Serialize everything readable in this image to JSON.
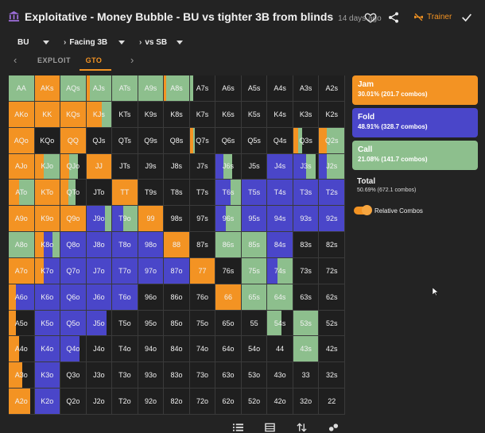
{
  "header": {
    "title": "Exploitative - Money Bubble - BU vs tighter 3B from blinds",
    "time": "14 days ago",
    "trainer_label": "Trainer"
  },
  "breadcrumbs": [
    {
      "label": "BU",
      "name": "breadcrumb-position"
    },
    {
      "label": "Facing 3B",
      "name": "breadcrumb-action"
    },
    {
      "label": "vs SB",
      "name": "breadcrumb-villain"
    }
  ],
  "tabs": {
    "exploit": "EXPLOIT",
    "gto": "GTO"
  },
  "colors": {
    "jam": "#f39323",
    "fold": "#4a46c9",
    "call": "#8dbf8d",
    "none": "#1f1f1f"
  },
  "legend": {
    "jam": {
      "name": "Jam",
      "pct": "30.01% (201.7 combos)"
    },
    "fold": {
      "name": "Fold",
      "pct": "48.91% (328.7 combos)"
    },
    "call": {
      "name": "Call",
      "pct": "21.08% (141.7 combos)"
    },
    "total": {
      "label": "Total",
      "value": "50.69% (672.1 combos)"
    },
    "relative_combos": "Relative Combos"
  },
  "matrix": [
    [
      {
        "h": "AA",
        "j": 0,
        "f": 0,
        "c": 1
      },
      {
        "h": "AKs",
        "j": 1,
        "f": 0,
        "c": 0
      },
      {
        "h": "AQs",
        "j": 0,
        "f": 0,
        "c": 1
      },
      {
        "h": "AJs",
        "j": 0.15,
        "f": 0,
        "c": 0.85
      },
      {
        "h": "ATs",
        "j": 0,
        "f": 0,
        "c": 1
      },
      {
        "h": "A9s",
        "j": 0,
        "f": 0,
        "c": 1
      },
      {
        "h": "A8s",
        "j": 0.1,
        "f": 0,
        "c": 0.9
      },
      {
        "h": "A7s",
        "j": 0,
        "f": 0,
        "c": 0.15
      },
      {
        "h": "A6s",
        "j": 0,
        "f": 0,
        "c": 0
      },
      {
        "h": "A5s",
        "j": 0,
        "f": 0,
        "c": 0
      },
      {
        "h": "A4s",
        "j": 0,
        "f": 0,
        "c": 0
      },
      {
        "h": "A3s",
        "j": 0,
        "f": 0,
        "c": 0
      },
      {
        "h": "A2s",
        "j": 0,
        "f": 0,
        "c": 0
      }
    ],
    [
      {
        "h": "AKo",
        "j": 1,
        "f": 0,
        "c": 0
      },
      {
        "h": "KK",
        "j": 1,
        "f": 0,
        "c": 0
      },
      {
        "h": "KQs",
        "j": 1,
        "f": 0,
        "c": 0
      },
      {
        "h": "KJs",
        "j": 0.6,
        "f": 0,
        "c": 0.4
      },
      {
        "h": "KTs",
        "j": 0,
        "f": 0,
        "c": 0
      },
      {
        "h": "K9s",
        "j": 0,
        "f": 0,
        "c": 0
      },
      {
        "h": "K8s",
        "j": 0,
        "f": 0,
        "c": 0
      },
      {
        "h": "K7s",
        "j": 0,
        "f": 0,
        "c": 0
      },
      {
        "h": "K6s",
        "j": 0,
        "f": 0,
        "c": 0
      },
      {
        "h": "K5s",
        "j": 0,
        "f": 0,
        "c": 0
      },
      {
        "h": "K4s",
        "j": 0,
        "f": 0,
        "c": 0
      },
      {
        "h": "K3s",
        "j": 0,
        "f": 0,
        "c": 0
      },
      {
        "h": "K2s",
        "j": 0,
        "f": 0,
        "c": 0
      }
    ],
    [
      {
        "h": "AQo",
        "j": 1,
        "f": 0,
        "c": 0
      },
      {
        "h": "KQo",
        "j": 0,
        "f": 0,
        "c": 0
      },
      {
        "h": "QQ",
        "j": 1,
        "f": 0,
        "c": 0
      },
      {
        "h": "QJs",
        "j": 0,
        "f": 0,
        "c": 0
      },
      {
        "h": "QTs",
        "j": 0,
        "f": 0,
        "c": 0
      },
      {
        "h": "Q9s",
        "j": 0,
        "f": 0,
        "c": 0
      },
      {
        "h": "Q8s",
        "j": 0,
        "f": 0,
        "c": 0
      },
      {
        "h": "Q7s",
        "j": 0.12,
        "f": 0,
        "c": 0.08
      },
      {
        "h": "Q6s",
        "j": 0,
        "f": 0,
        "c": 0
      },
      {
        "h": "Q5s",
        "j": 0,
        "f": 0,
        "c": 0
      },
      {
        "h": "Q4s",
        "j": 0,
        "f": 0,
        "c": 0
      },
      {
        "h": "Q3s",
        "j": 0.2,
        "f": 0,
        "c": 0.15
      },
      {
        "h": "Q2s",
        "j": 0.3,
        "f": 0,
        "c": 0.7
      }
    ],
    [
      {
        "h": "AJo",
        "j": 1,
        "f": 0,
        "c": 0
      },
      {
        "h": "KJo",
        "j": 0.35,
        "f": 0,
        "c": 0.65
      },
      {
        "h": "QJo",
        "j": 0.35,
        "f": 0,
        "c": 0.35
      },
      {
        "h": "JJ",
        "j": 1,
        "f": 0,
        "c": 0
      },
      {
        "h": "JTs",
        "j": 0,
        "f": 0,
        "c": 0
      },
      {
        "h": "J9s",
        "j": 0,
        "f": 0,
        "c": 0
      },
      {
        "h": "J8s",
        "j": 0,
        "f": 0,
        "c": 0
      },
      {
        "h": "J7s",
        "j": 0,
        "f": 0,
        "c": 0
      },
      {
        "h": "J6s",
        "j": 0,
        "f": 0.3,
        "c": 0.35
      },
      {
        "h": "J5s",
        "j": 0,
        "f": 0,
        "c": 0
      },
      {
        "h": "J4s",
        "j": 0,
        "f": 1,
        "c": 0
      },
      {
        "h": "J3s",
        "j": 0,
        "f": 0.5,
        "c": 0.4
      },
      {
        "h": "J2s",
        "j": 0,
        "f": 0.3,
        "c": 0.7
      }
    ],
    [
      {
        "h": "ATo",
        "j": 0.4,
        "f": 0,
        "c": 0.6
      },
      {
        "h": "KTo",
        "j": 1,
        "f": 0,
        "c": 0
      },
      {
        "h": "QTo",
        "j": 0.3,
        "f": 0,
        "c": 0.3
      },
      {
        "h": "JTo",
        "j": 0,
        "f": 0,
        "c": 0
      },
      {
        "h": "TT",
        "j": 1,
        "f": 0,
        "c": 0
      },
      {
        "h": "T9s",
        "j": 0,
        "f": 0,
        "c": 0
      },
      {
        "h": "T8s",
        "j": 0,
        "f": 0,
        "c": 0
      },
      {
        "h": "T7s",
        "j": 0,
        "f": 0,
        "c": 0
      },
      {
        "h": "T6s",
        "j": 0,
        "f": 0.6,
        "c": 0.4
      },
      {
        "h": "T5s",
        "j": 0,
        "f": 1,
        "c": 0
      },
      {
        "h": "T4s",
        "j": 0,
        "f": 1,
        "c": 0
      },
      {
        "h": "T3s",
        "j": 0,
        "f": 1,
        "c": 0
      },
      {
        "h": "T2s",
        "j": 0,
        "f": 1,
        "c": 0
      }
    ],
    [
      {
        "h": "A9o",
        "j": 1,
        "f": 0,
        "c": 0
      },
      {
        "h": "K9o",
        "j": 1,
        "f": 0,
        "c": 0
      },
      {
        "h": "Q9o",
        "j": 1,
        "f": 0,
        "c": 0
      },
      {
        "h": "J9o",
        "j": 0,
        "f": 0.75,
        "c": 0.25
      },
      {
        "h": "T9o",
        "j": 0,
        "f": 0.45,
        "c": 0.55
      },
      {
        "h": "99",
        "j": 1,
        "f": 0,
        "c": 0
      },
      {
        "h": "98s",
        "j": 0,
        "f": 0,
        "c": 0
      },
      {
        "h": "97s",
        "j": 0,
        "f": 0,
        "c": 0
      },
      {
        "h": "96s",
        "j": 0,
        "f": 0.4,
        "c": 0.6
      },
      {
        "h": "95s",
        "j": 0,
        "f": 1,
        "c": 0
      },
      {
        "h": "94s",
        "j": 0,
        "f": 1,
        "c": 0
      },
      {
        "h": "93s",
        "j": 0,
        "f": 1,
        "c": 0
      },
      {
        "h": "92s",
        "j": 0,
        "f": 1,
        "c": 0
      }
    ],
    [
      {
        "h": "A8o",
        "j": 0,
        "f": 0,
        "c": 1
      },
      {
        "h": "K8o",
        "j": 0.35,
        "f": 0.35,
        "c": 0.3
      },
      {
        "h": "Q8o",
        "j": 0,
        "f": 1,
        "c": 0
      },
      {
        "h": "J8o",
        "j": 0,
        "f": 1,
        "c": 0
      },
      {
        "h": "T8o",
        "j": 0,
        "f": 1,
        "c": 0
      },
      {
        "h": "98o",
        "j": 0,
        "f": 1,
        "c": 0
      },
      {
        "h": "88",
        "j": 1,
        "f": 0,
        "c": 0
      },
      {
        "h": "87s",
        "j": 0,
        "f": 0,
        "c": 0
      },
      {
        "h": "86s",
        "j": 0,
        "f": 0,
        "c": 1
      },
      {
        "h": "85s",
        "j": 0,
        "f": 0,
        "c": 1
      },
      {
        "h": "84s",
        "j": 0,
        "f": 1,
        "c": 0
      },
      {
        "h": "83s",
        "j": 0,
        "f": 0,
        "c": 0
      },
      {
        "h": "82s",
        "j": 0,
        "f": 0,
        "c": 0
      }
    ],
    [
      {
        "h": "A7o",
        "j": 1,
        "f": 0,
        "c": 0
      },
      {
        "h": "K7o",
        "j": 0.35,
        "f": 0.65,
        "c": 0
      },
      {
        "h": "Q7o",
        "j": 0,
        "f": 1,
        "c": 0
      },
      {
        "h": "J7o",
        "j": 0,
        "f": 1,
        "c": 0
      },
      {
        "h": "T7o",
        "j": 0,
        "f": 1,
        "c": 0
      },
      {
        "h": "97o",
        "j": 0,
        "f": 1,
        "c": 0
      },
      {
        "h": "87o",
        "j": 0,
        "f": 1,
        "c": 0
      },
      {
        "h": "77",
        "j": 1,
        "f": 0,
        "c": 0
      },
      {
        "h": "76s",
        "j": 0,
        "f": 0,
        "c": 0
      },
      {
        "h": "75s",
        "j": 0,
        "f": 0,
        "c": 1
      },
      {
        "h": "74s",
        "j": 0,
        "f": 0.4,
        "c": 0.6
      },
      {
        "h": "73s",
        "j": 0,
        "f": 0,
        "c": 0
      },
      {
        "h": "72s",
        "j": 0,
        "f": 0,
        "c": 0
      }
    ],
    [
      {
        "h": "A6o",
        "j": 0.3,
        "f": 0.7,
        "c": 0
      },
      {
        "h": "K6o",
        "j": 0,
        "f": 1,
        "c": 0
      },
      {
        "h": "Q6o",
        "j": 0,
        "f": 1,
        "c": 0
      },
      {
        "h": "J6o",
        "j": 0,
        "f": 1,
        "c": 0
      },
      {
        "h": "T6o",
        "j": 0,
        "f": 1,
        "c": 0
      },
      {
        "h": "96o",
        "j": 0,
        "f": 0,
        "c": 0
      },
      {
        "h": "86o",
        "j": 0,
        "f": 0,
        "c": 0
      },
      {
        "h": "76o",
        "j": 0,
        "f": 0,
        "c": 0
      },
      {
        "h": "66",
        "j": 1,
        "f": 0,
        "c": 0
      },
      {
        "h": "65s",
        "j": 0,
        "f": 0,
        "c": 1
      },
      {
        "h": "64s",
        "j": 0,
        "f": 0,
        "c": 1
      },
      {
        "h": "63s",
        "j": 0,
        "f": 0,
        "c": 0
      },
      {
        "h": "62s",
        "j": 0,
        "f": 0,
        "c": 0
      }
    ],
    [
      {
        "h": "A5o",
        "j": 0.3,
        "f": 0,
        "c": 0
      },
      {
        "h": "K5o",
        "j": 0,
        "f": 1,
        "c": 0
      },
      {
        "h": "Q5o",
        "j": 0,
        "f": 1,
        "c": 0
      },
      {
        "h": "J5o",
        "j": 0,
        "f": 0.8,
        "c": 0
      },
      {
        "h": "T5o",
        "j": 0,
        "f": 0,
        "c": 0
      },
      {
        "h": "95o",
        "j": 0,
        "f": 0,
        "c": 0
      },
      {
        "h": "85o",
        "j": 0,
        "f": 0,
        "c": 0
      },
      {
        "h": "75o",
        "j": 0,
        "f": 0,
        "c": 0
      },
      {
        "h": "65o",
        "j": 0,
        "f": 0,
        "c": 0
      },
      {
        "h": "55",
        "j": 0,
        "f": 0,
        "c": 0
      },
      {
        "h": "54s",
        "j": 0,
        "f": 0,
        "c": 0.55
      },
      {
        "h": "53s",
        "j": 0,
        "f": 0,
        "c": 1
      },
      {
        "h": "52s",
        "j": 0,
        "f": 0,
        "c": 0
      }
    ],
    [
      {
        "h": "A4o",
        "j": 0.4,
        "f": 0,
        "c": 0
      },
      {
        "h": "K4o",
        "j": 0,
        "f": 1,
        "c": 0
      },
      {
        "h": "Q4o",
        "j": 0,
        "f": 0.75,
        "c": 0
      },
      {
        "h": "J4o",
        "j": 0,
        "f": 0,
        "c": 0
      },
      {
        "h": "T4o",
        "j": 0,
        "f": 0,
        "c": 0
      },
      {
        "h": "94o",
        "j": 0,
        "f": 0,
        "c": 0
      },
      {
        "h": "84o",
        "j": 0,
        "f": 0,
        "c": 0
      },
      {
        "h": "74o",
        "j": 0,
        "f": 0,
        "c": 0
      },
      {
        "h": "64o",
        "j": 0,
        "f": 0,
        "c": 0
      },
      {
        "h": "54o",
        "j": 0,
        "f": 0,
        "c": 0
      },
      {
        "h": "44",
        "j": 0,
        "f": 0,
        "c": 0
      },
      {
        "h": "43s",
        "j": 0,
        "f": 0,
        "c": 1
      },
      {
        "h": "42s",
        "j": 0,
        "f": 0,
        "c": 0
      }
    ],
    [
      {
        "h": "A3o",
        "j": 0.55,
        "f": 0,
        "c": 0
      },
      {
        "h": "K3o",
        "j": 0,
        "f": 1,
        "c": 0
      },
      {
        "h": "Q3o",
        "j": 0,
        "f": 0,
        "c": 0
      },
      {
        "h": "J3o",
        "j": 0,
        "f": 0,
        "c": 0
      },
      {
        "h": "T3o",
        "j": 0,
        "f": 0,
        "c": 0
      },
      {
        "h": "93o",
        "j": 0,
        "f": 0,
        "c": 0
      },
      {
        "h": "83o",
        "j": 0,
        "f": 0,
        "c": 0
      },
      {
        "h": "73o",
        "j": 0,
        "f": 0,
        "c": 0
      },
      {
        "h": "63o",
        "j": 0,
        "f": 0,
        "c": 0
      },
      {
        "h": "53o",
        "j": 0,
        "f": 0,
        "c": 0
      },
      {
        "h": "43o",
        "j": 0,
        "f": 0,
        "c": 0
      },
      {
        "h": "33",
        "j": 0,
        "f": 0,
        "c": 0
      },
      {
        "h": "32s",
        "j": 0,
        "f": 0,
        "c": 0
      }
    ],
    [
      {
        "h": "A2o",
        "j": 0.85,
        "f": 0,
        "c": 0
      },
      {
        "h": "K2o",
        "j": 0,
        "f": 1,
        "c": 0
      },
      {
        "h": "Q2o",
        "j": 0,
        "f": 0,
        "c": 0
      },
      {
        "h": "J2o",
        "j": 0,
        "f": 0,
        "c": 0
      },
      {
        "h": "T2o",
        "j": 0,
        "f": 0,
        "c": 0
      },
      {
        "h": "92o",
        "j": 0,
        "f": 0,
        "c": 0
      },
      {
        "h": "82o",
        "j": 0,
        "f": 0,
        "c": 0
      },
      {
        "h": "72o",
        "j": 0,
        "f": 0,
        "c": 0
      },
      {
        "h": "62o",
        "j": 0,
        "f": 0,
        "c": 0
      },
      {
        "h": "52o",
        "j": 0,
        "f": 0,
        "c": 0
      },
      {
        "h": "42o",
        "j": 0,
        "f": 0,
        "c": 0
      },
      {
        "h": "32o",
        "j": 0,
        "f": 0,
        "c": 0
      },
      {
        "h": "22",
        "j": 0,
        "f": 0,
        "c": 0
      }
    ]
  ]
}
